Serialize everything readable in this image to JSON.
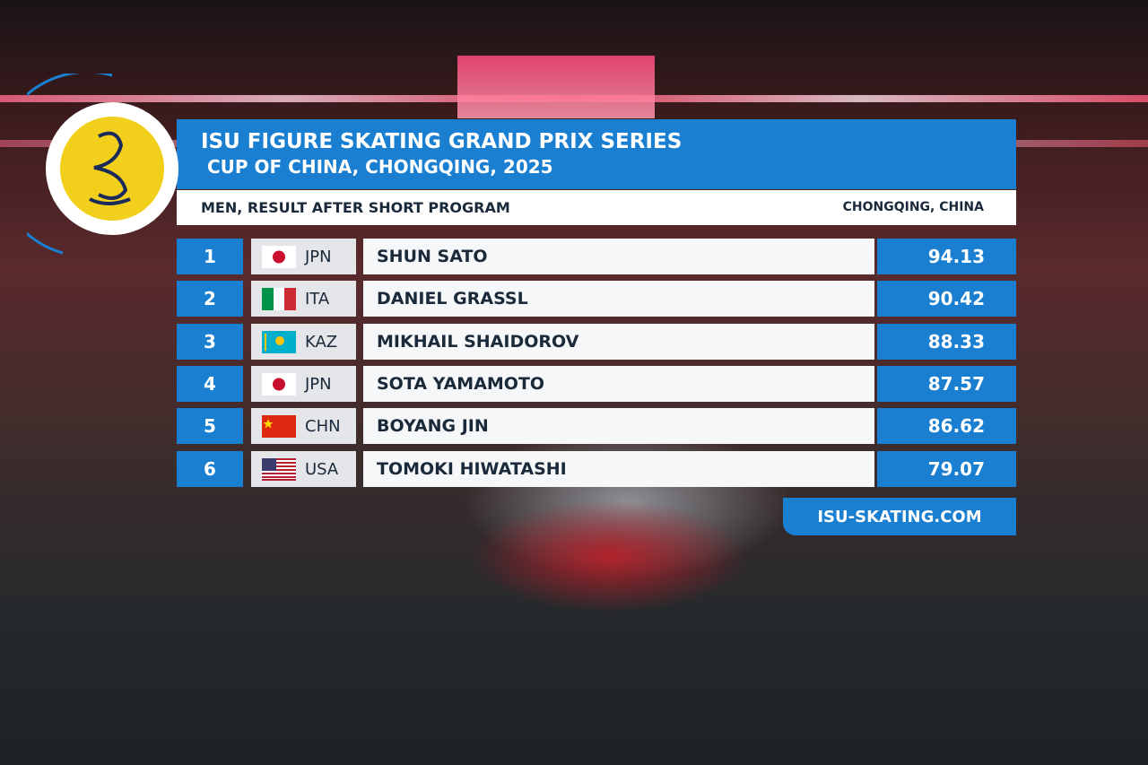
{
  "header": {
    "title": "ISU FIGURE SKATING GRAND PRIX SERIES",
    "subtitle": "CUP OF CHINA, CHONGQING, 2025",
    "event": "MEN, RESULT AFTER SHORT PROGRAM",
    "location": "CHONGQING, CHINA"
  },
  "table": {
    "rows": [
      {
        "rank": 1,
        "country": "JPN",
        "name": "SHUN SATO",
        "score": 94.13
      },
      {
        "rank": 2,
        "country": "ITA",
        "name": "DANIEL GRASSL",
        "score": 90.42
      },
      {
        "rank": 3,
        "country": "KAZ",
        "name": "MIKHAIL SHAIDOROV",
        "score": 88.33
      },
      {
        "rank": 4,
        "country": "JPN",
        "name": "SOTA YAMAMOTO",
        "score": 87.57
      },
      {
        "rank": 5,
        "country": "CHN",
        "name": "BOYANG JIN",
        "score": 86.62
      },
      {
        "rank": 6,
        "country": "USA",
        "name": "TOMOKI HIWATASHI",
        "score": 79.07
      }
    ]
  },
  "footer": {
    "website": "ISU-SKATING.COM"
  }
}
